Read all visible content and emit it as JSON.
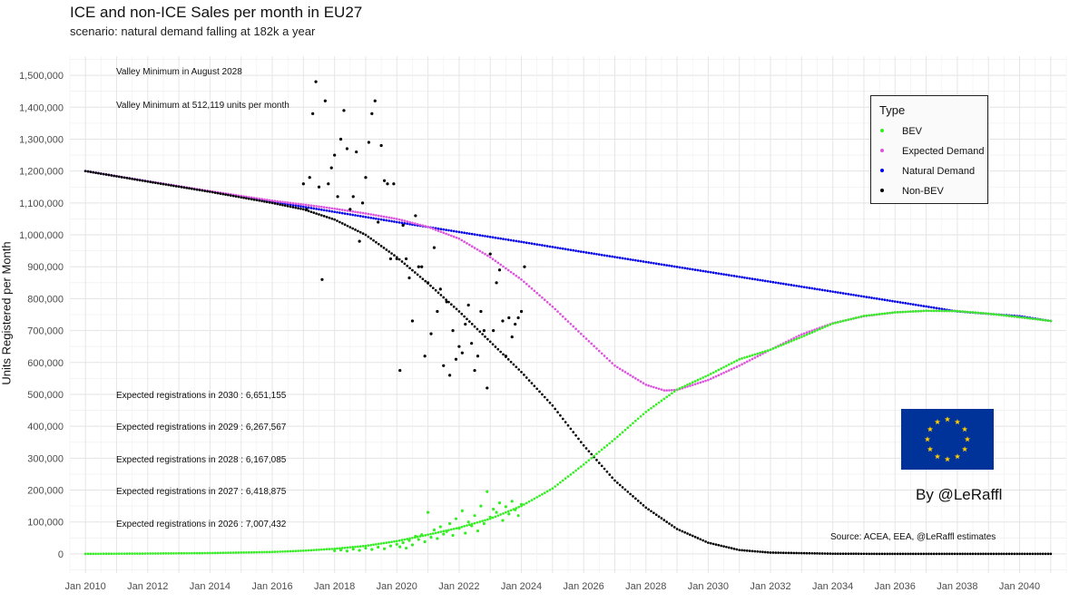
{
  "chart_data": {
    "type": "scatter",
    "title": "ICE and non-ICE Sales per month in EU27",
    "subtitle": "scenario: natural demand falling at 182k a year",
    "xlabel": "",
    "ylabel": "Units Registered per Month",
    "xlim": [
      2009.5,
      2041.5
    ],
    "ylim": [
      -60000,
      1560000
    ],
    "grid": true,
    "x_ticks": [
      2010,
      2012,
      2014,
      2016,
      2018,
      2020,
      2022,
      2024,
      2026,
      2028,
      2030,
      2032,
      2034,
      2036,
      2038,
      2040
    ],
    "x_tick_labels": [
      "Jan 2010",
      "Jan 2012",
      "Jan 2014",
      "Jan 2016",
      "Jan 2018",
      "Jan 2020",
      "Jan 2022",
      "Jan 2024",
      "Jan 2026",
      "Jan 2028",
      "Jan 2030",
      "Jan 2032",
      "Jan 2034",
      "Jan 2036",
      "Jan 2038",
      "Jan 2040"
    ],
    "y_ticks": [
      0,
      100000,
      200000,
      300000,
      400000,
      500000,
      600000,
      700000,
      800000,
      900000,
      1000000,
      1100000,
      1200000,
      1300000,
      1400000,
      1500000
    ],
    "y_tick_labels": [
      "0",
      "100,000",
      "200,000",
      "300,000",
      "400,000",
      "500,000",
      "600,000",
      "700,000",
      "800,000",
      "900,000",
      "1,000,000",
      "1,100,000",
      "1,200,000",
      "1,300,000",
      "1,400,000",
      "1,500,000"
    ],
    "series": [
      {
        "name": "Natural Demand",
        "color": "#0000ee",
        "kind": "modelled",
        "x": [
          2010,
          2012,
          2014,
          2016,
          2018,
          2020,
          2022,
          2024,
          2026,
          2028,
          2030,
          2032,
          2034,
          2036,
          2038,
          2040,
          2041
        ],
        "y": [
          1200000,
          1168000,
          1136000,
          1104000,
          1072000,
          1040000,
          1009000,
          978000,
          946000,
          915000,
          884000,
          853000,
          822000,
          791000,
          760000,
          745000,
          730000
        ]
      },
      {
        "name": "Expected Demand",
        "color": "#dd55dd",
        "kind": "modelled",
        "x": [
          2010,
          2012,
          2014,
          2016,
          2017,
          2018,
          2019,
          2020,
          2021,
          2022,
          2023,
          2024,
          2025,
          2026,
          2027,
          2028,
          2028.6,
          2029,
          2030,
          2031,
          2032,
          2033,
          2034,
          2035,
          2036,
          2037,
          2038,
          2039,
          2040,
          2041
        ],
        "y": [
          1200000,
          1168000,
          1137000,
          1107000,
          1095000,
          1082000,
          1067000,
          1050000,
          1025000,
          988000,
          930000,
          860000,
          775000,
          682000,
          590000,
          530000,
          512000,
          514000,
          545000,
          590000,
          640000,
          688000,
          723000,
          745000,
          757000,
          762000,
          761000,
          753000,
          742000,
          730000
        ]
      },
      {
        "name": "Non-BEV",
        "color": "#000000",
        "kind": "modelled",
        "x": [
          2010,
          2012,
          2014,
          2016,
          2017,
          2018,
          2019,
          2020,
          2021,
          2022,
          2023,
          2024,
          2025,
          2026,
          2027,
          2028,
          2029,
          2030,
          2031,
          2032,
          2034,
          2036,
          2038,
          2040,
          2041
        ],
        "y": [
          1200000,
          1167000,
          1135000,
          1100000,
          1080000,
          1048000,
          1000000,
          930000,
          848000,
          760000,
          665000,
          570000,
          465000,
          340000,
          230000,
          145000,
          78000,
          35000,
          12000,
          4000,
          500,
          0,
          0,
          0,
          0
        ]
      },
      {
        "name": "BEV",
        "color": "#33ee22",
        "kind": "modelled",
        "x": [
          2010,
          2012,
          2014,
          2016,
          2017,
          2018,
          2019,
          2020,
          2021,
          2022,
          2023,
          2024,
          2025,
          2026,
          2027,
          2028,
          2029,
          2030,
          2031,
          2032,
          2033,
          2034,
          2035,
          2036,
          2037,
          2038,
          2039,
          2040,
          2041
        ],
        "y": [
          0,
          1000,
          2500,
          6000,
          10000,
          16000,
          25000,
          40000,
          60000,
          82000,
          110000,
          150000,
          205000,
          280000,
          360000,
          445000,
          515000,
          560000,
          610000,
          640000,
          680000,
          722000,
          746000,
          757000,
          762000,
          761000,
          753000,
          742000,
          730000
        ]
      },
      {
        "name": "Non-BEV",
        "color": "#000000",
        "kind": "observed",
        "x": [
          2017.0,
          2017.1,
          2017.2,
          2017.3,
          2017.4,
          2017.5,
          2017.6,
          2017.7,
          2017.8,
          2017.9,
          2018.0,
          2018.1,
          2018.2,
          2018.3,
          2018.4,
          2018.5,
          2018.6,
          2018.7,
          2018.8,
          2018.9,
          2019.0,
          2019.1,
          2019.2,
          2019.3,
          2019.4,
          2019.5,
          2019.6,
          2019.7,
          2019.8,
          2019.9,
          2020.0,
          2020.1,
          2020.2,
          2020.3,
          2020.4,
          2020.5,
          2020.6,
          2020.7,
          2020.8,
          2020.9,
          2021.0,
          2021.1,
          2021.2,
          2021.3,
          2021.4,
          2021.5,
          2021.6,
          2021.7,
          2021.8,
          2021.9,
          2022.0,
          2022.1,
          2022.2,
          2022.3,
          2022.4,
          2022.5,
          2022.6,
          2022.7,
          2022.8,
          2022.9,
          2023.0,
          2023.1,
          2023.2,
          2023.3,
          2023.4,
          2023.5,
          2023.6,
          2023.7,
          2023.8,
          2023.9,
          2024.0,
          2024.1
        ],
        "y": [
          1160000,
          1080000,
          1180000,
          1380000,
          1480000,
          1150000,
          860000,
          1420000,
          1160000,
          1210000,
          1250000,
          1120000,
          1300000,
          1390000,
          1270000,
          1080000,
          1120000,
          1260000,
          980000,
          1100000,
          1180000,
          1290000,
          1380000,
          1420000,
          1040000,
          1280000,
          1170000,
          1160000,
          925000,
          1160000,
          925000,
          575000,
          1030000,
          925000,
          865000,
          730000,
          1060000,
          900000,
          900000,
          620000,
          850000,
          690000,
          960000,
          760000,
          830000,
          590000,
          790000,
          560000,
          700000,
          610000,
          650000,
          630000,
          720000,
          780000,
          660000,
          575000,
          620000,
          760000,
          700000,
          520000,
          940000,
          700000,
          850000,
          890000,
          730000,
          620000,
          740000,
          680000,
          720000,
          740000,
          760000,
          900000
        ]
      },
      {
        "name": "BEV",
        "color": "#33ee22",
        "kind": "observed",
        "x": [
          2018.0,
          2018.2,
          2018.4,
          2018.6,
          2018.8,
          2019.0,
          2019.2,
          2019.4,
          2019.6,
          2019.8,
          2020.0,
          2020.1,
          2020.2,
          2020.3,
          2020.4,
          2020.5,
          2020.6,
          2020.7,
          2020.8,
          2020.9,
          2021.0,
          2021.1,
          2021.2,
          2021.3,
          2021.4,
          2021.5,
          2021.6,
          2021.7,
          2021.8,
          2021.9,
          2022.0,
          2022.1,
          2022.2,
          2022.3,
          2022.4,
          2022.5,
          2022.6,
          2022.7,
          2022.8,
          2022.9,
          2023.0,
          2023.1,
          2023.2,
          2023.3,
          2023.4,
          2023.5,
          2023.6,
          2023.7,
          2023.8,
          2023.9,
          2024.0
        ],
        "y": [
          10000,
          12000,
          9000,
          15000,
          11000,
          18000,
          14000,
          21000,
          16000,
          25000,
          30000,
          22000,
          35000,
          18000,
          42000,
          28000,
          55000,
          45000,
          60000,
          38000,
          130000,
          52000,
          75000,
          48000,
          85000,
          62000,
          70000,
          95000,
          58000,
          110000,
          80000,
          135000,
          65000,
          100000,
          88000,
          120000,
          72000,
          150000,
          95000,
          195000,
          115000,
          140000,
          130000,
          160000,
          105000,
          148000,
          125000,
          165000,
          138000,
          120000,
          155000
        ]
      }
    ],
    "annotations": [
      "Valley Minimum in August 2028",
      "Valley Minimum at 512,119 units per month",
      "Expected registrations in 2030 : 6,651,155",
      "Expected registrations in 2029 : 6,267,567",
      "Expected registrations in 2028 : 6,167,085",
      "Expected registrations in 2027 : 6,418,875",
      "Expected registrations in 2026 : 7,007,432"
    ],
    "legend": {
      "title": "Type",
      "position": "top-right",
      "items": [
        {
          "label": "BEV",
          "color": "#33ee22"
        },
        {
          "label": "Expected Demand",
          "color": "#dd55dd"
        },
        {
          "label": "Natural Demand",
          "color": "#0000ee"
        },
        {
          "label": "Non-BEV",
          "color": "#000000"
        }
      ]
    }
  },
  "byline": "By @LeRaffl",
  "source": "Source: ACEA, EEA, @LeRaffl estimates",
  "flag": {
    "name": "eu-flag",
    "background": "#003399",
    "star_color": "#ffcc00",
    "star_count": 12
  }
}
